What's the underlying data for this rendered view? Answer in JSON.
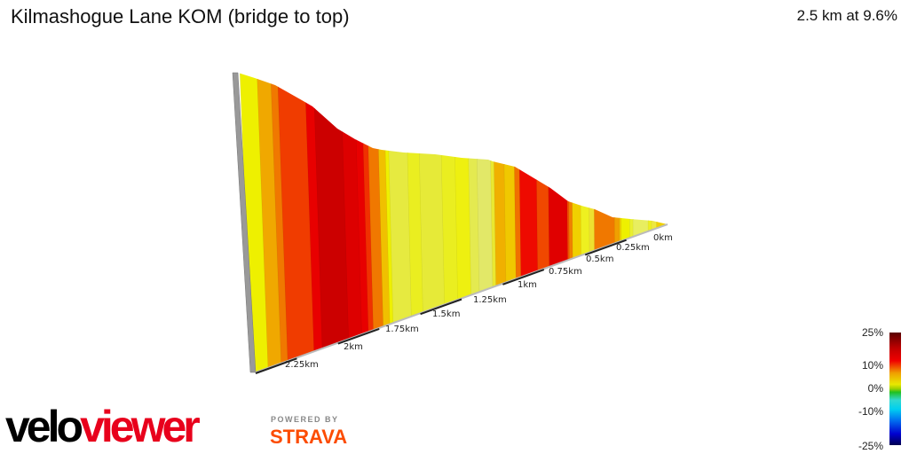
{
  "title": "Kilmashogue Lane KOM (bridge to top)",
  "summary": "2.5 km at 9.6%",
  "chart_data": {
    "type": "area",
    "subtype": "3d-elevation-profile",
    "distance_km": 2.5,
    "avg_gradient_pct": 9.6,
    "x_ticks": [
      "0km",
      "0.25km",
      "0.5km",
      "0.75km",
      "1km",
      "1.25km",
      "1.5km",
      "1.75km",
      "2km",
      "2.25km"
    ],
    "segments": [
      {
        "from": 2.5,
        "to": 2.4,
        "color": "#eef000"
      },
      {
        "from": 2.4,
        "to": 2.32,
        "color": "#f0a800"
      },
      {
        "from": 2.32,
        "to": 2.28,
        "color": "#f07800"
      },
      {
        "from": 2.28,
        "to": 2.12,
        "color": "#f03c00"
      },
      {
        "from": 2.12,
        "to": 2.07,
        "color": "#e80000"
      },
      {
        "from": 2.07,
        "to": 1.91,
        "color": "#cc0000"
      },
      {
        "from": 1.91,
        "to": 1.83,
        "color": "#dd0000"
      },
      {
        "from": 1.83,
        "to": 1.79,
        "color": "#e80000"
      },
      {
        "from": 1.79,
        "to": 1.76,
        "color": "#f03000"
      },
      {
        "from": 1.76,
        "to": 1.7,
        "color": "#f07800"
      },
      {
        "from": 1.7,
        "to": 1.66,
        "color": "#f0c000"
      },
      {
        "from": 1.66,
        "to": 1.64,
        "color": "#eef000"
      },
      {
        "from": 1.64,
        "to": 1.53,
        "color": "#e6ea40"
      },
      {
        "from": 1.53,
        "to": 1.46,
        "color": "#eaee20"
      },
      {
        "from": 1.46,
        "to": 1.33,
        "color": "#e6ea38"
      },
      {
        "from": 1.33,
        "to": 1.25,
        "color": "#eaee20"
      },
      {
        "from": 1.25,
        "to": 1.17,
        "color": "#eef010"
      },
      {
        "from": 1.17,
        "to": 1.12,
        "color": "#e4ea50"
      },
      {
        "from": 1.12,
        "to": 1.04,
        "color": "#e2e868"
      },
      {
        "from": 1.04,
        "to": 1.02,
        "color": "#eae830"
      },
      {
        "from": 1.02,
        "to": 0.96,
        "color": "#f0b000"
      },
      {
        "from": 0.96,
        "to": 0.9,
        "color": "#f0c800"
      },
      {
        "from": 0.9,
        "to": 0.87,
        "color": "#f07000"
      },
      {
        "from": 0.87,
        "to": 0.77,
        "color": "#ee0a00"
      },
      {
        "from": 0.77,
        "to": 0.7,
        "color": "#f04800"
      },
      {
        "from": 0.7,
        "to": 0.59,
        "color": "#e00000"
      },
      {
        "from": 0.59,
        "to": 0.58,
        "color": "#f05000"
      },
      {
        "from": 0.58,
        "to": 0.56,
        "color": "#f08000"
      },
      {
        "from": 0.56,
        "to": 0.51,
        "color": "#f0d000"
      },
      {
        "from": 0.51,
        "to": 0.46,
        "color": "#eef020"
      },
      {
        "from": 0.46,
        "to": 0.43,
        "color": "#eee030"
      },
      {
        "from": 0.43,
        "to": 0.31,
        "color": "#f07800"
      },
      {
        "from": 0.31,
        "to": 0.28,
        "color": "#f0a000"
      },
      {
        "from": 0.28,
        "to": 0.27,
        "color": "#f0d000"
      },
      {
        "from": 0.27,
        "to": 0.22,
        "color": "#eef000"
      },
      {
        "from": 0.22,
        "to": 0.2,
        "color": "#eaf030"
      },
      {
        "from": 0.2,
        "to": 0.11,
        "color": "#e8ee60"
      },
      {
        "from": 0.11,
        "to": 0.09,
        "color": "#eef020"
      },
      {
        "from": 0.09,
        "to": 0.06,
        "color": "#eee840"
      },
      {
        "from": 0.06,
        "to": 0,
        "color": "#f0d000"
      }
    ],
    "legend": {
      "labels": [
        "25%",
        "10%",
        "0%",
        "-10%",
        "-25%"
      ],
      "placement": "bottom-right"
    }
  },
  "branding": {
    "logo_a": "velo",
    "logo_b": "viewer",
    "powered_by": "POWERED BY",
    "strava": "STRAVA"
  }
}
